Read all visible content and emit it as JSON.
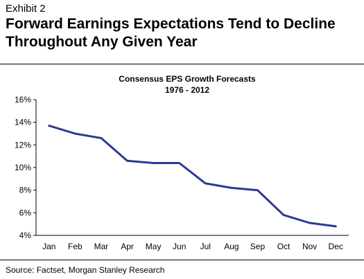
{
  "header": {
    "exhibit": "Exhibit 2",
    "headline_line1": "Forward Earnings Expectations Tend to Decline",
    "headline_line2": "Throughout Any Given Year"
  },
  "footer": {
    "source": "Source: Factset, Morgan Stanley Research"
  },
  "chart_data": {
    "type": "line",
    "title": "Consensus EPS Growth Forecasts",
    "subtitle": "1976 - 2012",
    "xlabel": "",
    "ylabel": "",
    "categories": [
      "Jan",
      "Feb",
      "Mar",
      "Apr",
      "May",
      "Jun",
      "Jul",
      "Aug",
      "Sep",
      "Oct",
      "Nov",
      "Dec"
    ],
    "series": [
      {
        "values": [
          13.7,
          13.0,
          12.6,
          10.6,
          10.4,
          10.4,
          8.6,
          8.2,
          8.0,
          5.8,
          5.1,
          4.8
        ],
        "color": "#2b3990"
      }
    ],
    "ylim": [
      4,
      16
    ],
    "yticks": [
      "4%",
      "6%",
      "8%",
      "10%",
      "12%",
      "14%",
      "16%"
    ],
    "grid": false,
    "legend": "none"
  }
}
